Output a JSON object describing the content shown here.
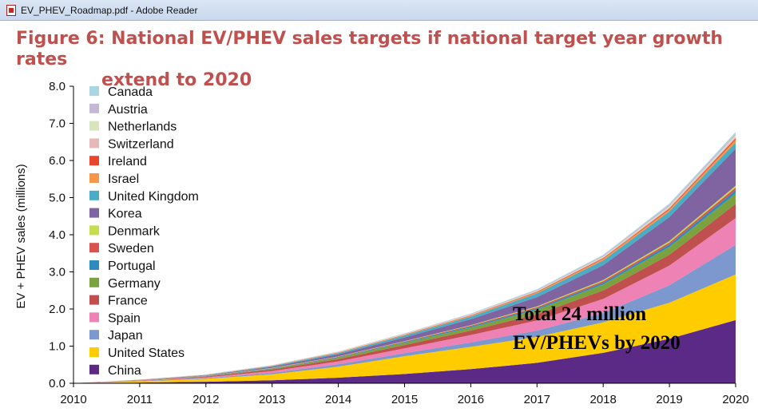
{
  "window": {
    "title": "EV_PHEV_Roadmap.pdf - Adobe Reader"
  },
  "figure_title": {
    "line1": "Figure 6: National EV/PHEV sales targets if national target year growth rates",
    "line2": "extend to 2020"
  },
  "chart_data": {
    "type": "area",
    "stacked": true,
    "title": "Figure 6: National EV/PHEV sales targets if national target year growth rates extend to 2020",
    "xlabel": "",
    "ylabel": "EV + PHEV sales (millions)",
    "x": [
      "2010",
      "2011",
      "2012",
      "2013",
      "2014",
      "2015",
      "2016",
      "2017",
      "2018",
      "2019",
      "2020"
    ],
    "ylim": [
      0,
      8
    ],
    "yticks": [
      "0.0",
      "1.0",
      "2.0",
      "3.0",
      "4.0",
      "5.0",
      "6.0",
      "7.0",
      "8.0"
    ],
    "legend_position": "top-left",
    "annotation": [
      "Total 24 million",
      "EV/PHEVs by 2020"
    ],
    "series": [
      {
        "name": "China",
        "color": "#5b2a86",
        "values": [
          0,
          0.02,
          0.04,
          0.08,
          0.15,
          0.25,
          0.38,
          0.55,
          0.82,
          1.2,
          1.7
        ]
      },
      {
        "name": "United States",
        "color": "#ffcc00",
        "values": [
          0,
          0.03,
          0.08,
          0.16,
          0.3,
          0.48,
          0.6,
          0.7,
          0.82,
          0.97,
          1.23
        ]
      },
      {
        "name": "Japan",
        "color": "#7d97cf",
        "values": [
          0,
          0.01,
          0.02,
          0.04,
          0.06,
          0.08,
          0.12,
          0.17,
          0.25,
          0.47,
          0.8
        ]
      },
      {
        "name": "Spain",
        "color": "#ee82b4",
        "values": [
          0,
          0.01,
          0.02,
          0.05,
          0.08,
          0.13,
          0.2,
          0.27,
          0.38,
          0.53,
          0.72
        ]
      },
      {
        "name": "France",
        "color": "#c0504d",
        "values": [
          0,
          0.005,
          0.02,
          0.04,
          0.06,
          0.09,
          0.12,
          0.17,
          0.23,
          0.29,
          0.38
        ]
      },
      {
        "name": "Germany",
        "color": "#7ba23f",
        "values": [
          0,
          0.005,
          0.01,
          0.02,
          0.04,
          0.06,
          0.08,
          0.12,
          0.16,
          0.21,
          0.28
        ]
      },
      {
        "name": "Portugal",
        "color": "#2e8bc0",
        "values": [
          0,
          0.002,
          0.005,
          0.01,
          0.015,
          0.02,
          0.03,
          0.04,
          0.05,
          0.07,
          0.09
        ]
      },
      {
        "name": "Sweden",
        "color": "#d9534f",
        "values": [
          0,
          0.002,
          0.004,
          0.007,
          0.01,
          0.015,
          0.02,
          0.03,
          0.04,
          0.05,
          0.07
        ]
      },
      {
        "name": "Denmark",
        "color": "#c5dd4e",
        "values": [
          0,
          0.001,
          0.003,
          0.005,
          0.008,
          0.01,
          0.015,
          0.02,
          0.03,
          0.04,
          0.05
        ]
      },
      {
        "name": "Korea",
        "color": "#8064a2",
        "values": [
          0,
          0.005,
          0.01,
          0.03,
          0.06,
          0.1,
          0.16,
          0.25,
          0.4,
          0.65,
          1.0
        ]
      },
      {
        "name": "United Kingdom",
        "color": "#4bacc6",
        "values": [
          0,
          0.003,
          0.01,
          0.02,
          0.03,
          0.05,
          0.07,
          0.1,
          0.13,
          0.15,
          0.17
        ]
      },
      {
        "name": "Israel",
        "color": "#f79646",
        "values": [
          0,
          0.002,
          0.005,
          0.008,
          0.012,
          0.017,
          0.023,
          0.03,
          0.04,
          0.05,
          0.07
        ]
      },
      {
        "name": "Ireland",
        "color": "#e8452c",
        "values": [
          0,
          0.001,
          0.002,
          0.004,
          0.006,
          0.008,
          0.011,
          0.015,
          0.02,
          0.03,
          0.04
        ]
      },
      {
        "name": "Switzerland",
        "color": "#e6b9b8",
        "values": [
          0,
          0.001,
          0.002,
          0.004,
          0.006,
          0.008,
          0.011,
          0.015,
          0.02,
          0.03,
          0.04
        ]
      },
      {
        "name": "Netherlands",
        "color": "#d7e4bd",
        "values": [
          0,
          0.001,
          0.002,
          0.004,
          0.006,
          0.008,
          0.011,
          0.015,
          0.02,
          0.03,
          0.04
        ]
      },
      {
        "name": "Austria",
        "color": "#c4b9d4",
        "values": [
          0,
          0.001,
          0.003,
          0.005,
          0.008,
          0.011,
          0.016,
          0.02,
          0.03,
          0.04,
          0.05
        ]
      },
      {
        "name": "Canada",
        "color": "#a9d6e0",
        "values": [
          0,
          0.001,
          0.002,
          0.004,
          0.006,
          0.009,
          0.012,
          0.016,
          0.02,
          0.03,
          0.04
        ]
      }
    ]
  }
}
